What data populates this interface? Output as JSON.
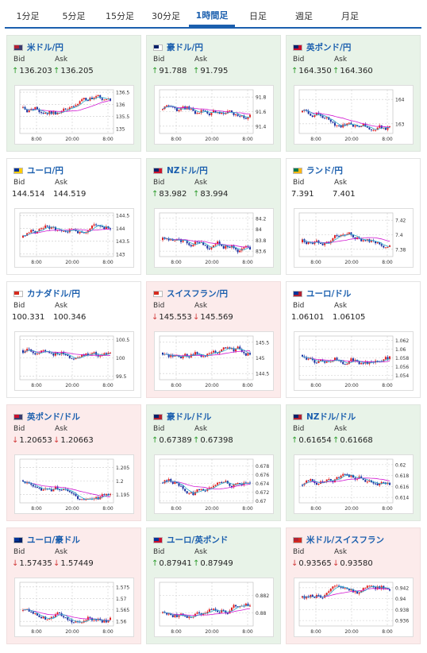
{
  "tabs": [
    {
      "label": "1分足",
      "active": false
    },
    {
      "label": "5分足",
      "active": false
    },
    {
      "label": "15分足",
      "active": false
    },
    {
      "label": "30分足",
      "active": false
    },
    {
      "label": "1時間足",
      "active": true
    },
    {
      "label": "日足",
      "active": false
    },
    {
      "label": "週足",
      "active": false
    },
    {
      "label": "月足",
      "active": false
    }
  ],
  "labels": {
    "bid": "Bid",
    "ask": "Ask"
  },
  "colors": {
    "up": "#2b9c2b",
    "down": "#d23b3b",
    "candle_up": "#e02020",
    "candle_down": "#1a2fa0",
    "ma": "#d21ad2",
    "ma2": "#2aa9c9",
    "link": "#1b5fae"
  },
  "pairs": [
    {
      "name": "米ドル/円",
      "bid": "136.203",
      "ask": "136.205",
      "dir": "up",
      "flag": [
        "#b22234",
        "#3c3b6e"
      ],
      "x_ticks": [
        "8:00",
        "20:00",
        "8:00"
      ],
      "y_ticks": [
        "136.5",
        "136",
        "135.5",
        "135"
      ],
      "y_range": [
        134.8,
        136.6
      ]
    },
    {
      "name": "豪ドル/円",
      "bid": "91.788",
      "ask": "91.795",
      "dir": "up",
      "flag": [
        "#012169",
        "#ffffff"
      ],
      "x_ticks": [
        "8:00",
        "20:00",
        "8:00"
      ],
      "y_ticks": [
        "91.8",
        "91.6",
        "91.4"
      ],
      "y_range": [
        91.3,
        91.9
      ]
    },
    {
      "name": "英ポンド/円",
      "bid": "164.350",
      "ask": "164.360",
      "dir": "up",
      "flag": [
        "#012169",
        "#c8102e"
      ],
      "x_ticks": [
        "8:00",
        "20:00",
        "8:00"
      ],
      "y_ticks": [
        "164",
        "163"
      ],
      "y_range": [
        162.6,
        164.4
      ]
    },
    {
      "name": "ユーロ/円",
      "bid": "144.514",
      "ask": "144.519",
      "dir": "neutral",
      "flag": [
        "#003399",
        "#ffcc00"
      ],
      "x_ticks": [
        "8:00",
        "20:00",
        "8:00"
      ],
      "y_ticks": [
        "144.5",
        "144",
        "143.5",
        "143"
      ],
      "y_range": [
        142.9,
        144.6
      ]
    },
    {
      "name": "NZドル/円",
      "bid": "83.982",
      "ask": "83.994",
      "dir": "up",
      "flag": [
        "#012169",
        "#cc142b"
      ],
      "x_ticks": [
        "8:00",
        "20:00",
        "8:00"
      ],
      "y_ticks": [
        "84.2",
        "84",
        "83.8",
        "83.6"
      ],
      "y_range": [
        83.5,
        84.3
      ]
    },
    {
      "name": "ランド/円",
      "bid": "7.391",
      "ask": "7.401",
      "dir": "neutral",
      "flag": [
        "#007a4d",
        "#ffb612"
      ],
      "x_ticks": [
        "8:00",
        "20:00",
        "8:00"
      ],
      "y_ticks": [
        "7.42",
        "7.4",
        "7.38"
      ],
      "y_range": [
        7.37,
        7.43
      ]
    },
    {
      "name": "カナダドル/円",
      "bid": "100.331",
      "ask": "100.346",
      "dir": "neutral",
      "flag": [
        "#d52b1e",
        "#ffffff"
      ],
      "x_ticks": [
        "8:00",
        "20:00",
        "8:00"
      ],
      "y_ticks": [
        "100.5",
        "100",
        "99.5"
      ],
      "y_range": [
        99.4,
        100.6
      ]
    },
    {
      "name": "スイスフラン/円",
      "bid": "145.553",
      "ask": "145.569",
      "dir": "down",
      "flag": [
        "#d52b1e",
        "#ffffff"
      ],
      "x_ticks": [
        "8:00",
        "20:00",
        "8:00"
      ],
      "y_ticks": [
        "145.5",
        "145",
        "144.5"
      ],
      "y_range": [
        144.3,
        145.7
      ]
    },
    {
      "name": "ユーロ/ドル",
      "bid": "1.06101",
      "ask": "1.06105",
      "dir": "neutral",
      "flag": [
        "#003399",
        "#b22234"
      ],
      "x_ticks": [
        "8:00",
        "20:00",
        "8:00"
      ],
      "y_ticks": [
        "1.062",
        "1.06",
        "1.058",
        "1.056",
        "1.054"
      ],
      "y_range": [
        1.053,
        1.063
      ]
    },
    {
      "name": "英ポンド/ドル",
      "bid": "1.20653",
      "ask": "1.20663",
      "dir": "down",
      "flag": [
        "#c8102e",
        "#3c3b6e"
      ],
      "x_ticks": [
        "8:00",
        "20:00",
        "8:00"
      ],
      "y_ticks": [
        "1.205",
        "1.2",
        "1.195"
      ],
      "y_range": [
        1.192,
        1.208
      ]
    },
    {
      "name": "豪ドル/ドル",
      "bid": "0.67389",
      "ask": "0.67398",
      "dir": "up",
      "flag": [
        "#012169",
        "#b22234"
      ],
      "x_ticks": [
        "8:00",
        "20:00",
        "8:00"
      ],
      "y_ticks": [
        "0.678",
        "0.676",
        "0.674",
        "0.672",
        "0.67"
      ],
      "y_range": [
        0.6695,
        0.6795
      ]
    },
    {
      "name": "NZドル/ドル",
      "bid": "0.61654",
      "ask": "0.61668",
      "dir": "up",
      "flag": [
        "#012169",
        "#b22234"
      ],
      "x_ticks": [
        "8:00",
        "20:00",
        "8:00"
      ],
      "y_ticks": [
        "0.62",
        "0.618",
        "0.616",
        "0.614"
      ],
      "y_range": [
        0.613,
        0.621
      ]
    },
    {
      "name": "ユーロ/豪ドル",
      "bid": "1.57435",
      "ask": "1.57449",
      "dir": "down",
      "flag": [
        "#003399",
        "#012169"
      ],
      "x_ticks": [
        "8:00",
        "20:00",
        "8:00"
      ],
      "y_ticks": [
        "1.575",
        "1.57",
        "1.565",
        "1.56"
      ],
      "y_range": [
        1.558,
        1.577
      ]
    },
    {
      "name": "ユーロ/英ポンド",
      "bid": "0.87941",
      "ask": "0.87949",
      "dir": "up",
      "flag": [
        "#003399",
        "#c8102e"
      ],
      "x_ticks": [
        "8:00",
        "20:00",
        "8:00"
      ],
      "y_ticks": [
        "0.882",
        "0.88"
      ],
      "y_range": [
        0.8785,
        0.8835
      ]
    },
    {
      "name": "米ドル/スイスフラン",
      "bid": "0.93565",
      "ask": "0.93580",
      "dir": "down",
      "flag": [
        "#b22234",
        "#d52b1e"
      ],
      "x_ticks": [
        "8:00",
        "20:00",
        "8:00"
      ],
      "y_ticks": [
        "0.942",
        "0.94",
        "0.938",
        "0.936"
      ],
      "y_range": [
        0.935,
        0.943
      ]
    }
  ]
}
